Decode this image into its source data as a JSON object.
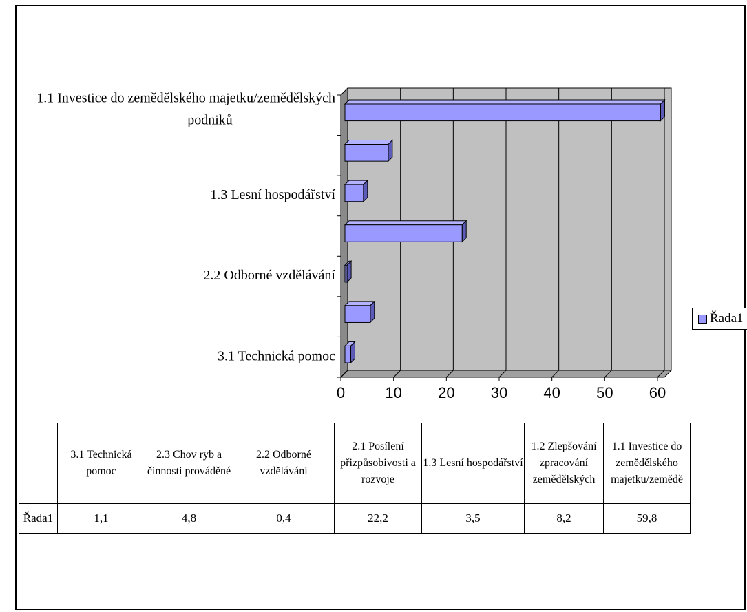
{
  "chart_data": {
    "type": "bar",
    "orientation": "horizontal",
    "style": "3d",
    "categories": [
      "3.1 Technická pomoc",
      "2.3 Chov ryb a činnosti prováděné",
      "2.2 Odborné vzdělávání",
      "2.1 Posílení přizpůsobivosti a rozvoje",
      "1.3 Lesní hospodářství",
      "1.2 Zlepšování zpracování zemědělských",
      "1.1 Investice do zemědělského majetku/zemědě"
    ],
    "axis_category_labels": [
      "3.1 Technická pomoc",
      "",
      "2.2 Odborné vzdělávání",
      "",
      "1.3 Lesní hospodářství",
      "",
      "1.1 Investice do zemědělského majetku/zemědělských podniků"
    ],
    "series": [
      {
        "name": "Řada1",
        "values": [
          1.1,
          4.8,
          0.4,
          22.2,
          3.5,
          8.2,
          59.8
        ],
        "color": "#9999ff"
      }
    ],
    "xlim": [
      0,
      60
    ],
    "x_ticks": [
      "0",
      "10",
      "20",
      "30",
      "40",
      "50",
      "60"
    ],
    "grid": true,
    "legend_position": "right"
  },
  "legend": {
    "label": "Řada1"
  },
  "table": {
    "row_label": "Řada1",
    "headers": [
      "3.1 Technická pomoc",
      "2.3 Chov ryb a činnosti prováděné",
      "2.2 Odborné vzdělávání",
      "2.1 Posílení přizpůsobivosti a rozvoje",
      "1.3 Lesní hospodářství",
      "1.2 Zlepšování zpracování zemědělských",
      "1.1 Investice do zemědělského majetku/zemědě"
    ],
    "values": [
      "1,1",
      "4,8",
      "0,4",
      "22,2",
      "3,5",
      "8,2",
      "59,8"
    ]
  },
  "colors": {
    "plot_background": "#c0c0c0",
    "bar_fill": "#9999ff",
    "bar_top": "#b3b3ff",
    "bar_side": "#5c5cb8"
  }
}
